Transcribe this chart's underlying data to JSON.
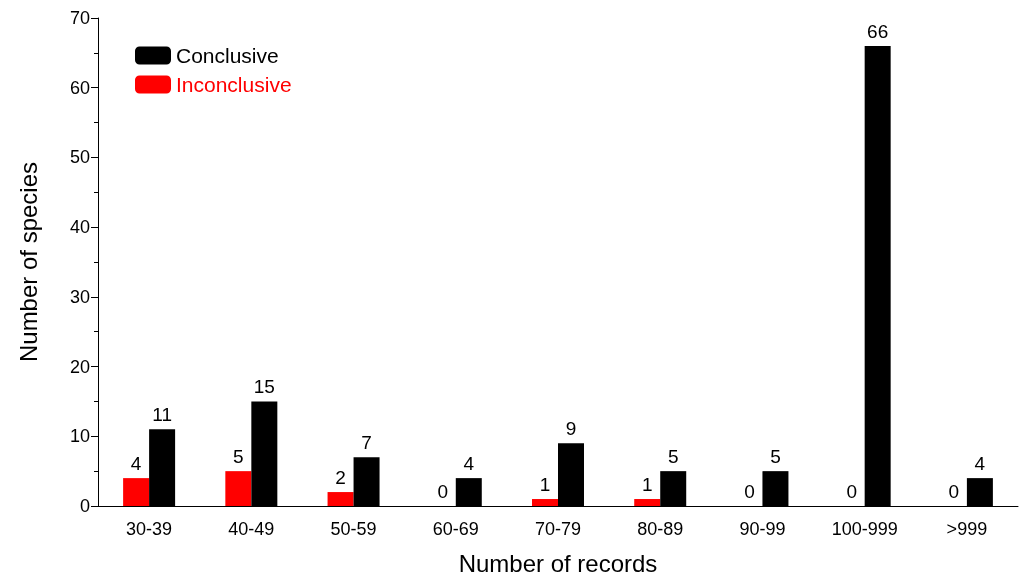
{
  "chart_data": {
    "type": "bar",
    "xlabel": "Number of records",
    "ylabel": "Number of species",
    "categories": [
      "30-39",
      "40-49",
      "50-59",
      "60-69",
      "70-79",
      "80-89",
      "90-99",
      "100-999",
      ">999"
    ],
    "series": [
      {
        "name": "Inconclusive",
        "color": "#ff0000",
        "values": [
          4,
          5,
          2,
          0,
          1,
          1,
          0,
          0,
          0
        ]
      },
      {
        "name": "Conclusive",
        "color": "#000000",
        "values": [
          11,
          15,
          7,
          4,
          9,
          5,
          5,
          66,
          4
        ]
      }
    ],
    "ylim": [
      0,
      70
    ],
    "yticks": [
      0,
      10,
      20,
      30,
      40,
      50,
      60,
      70
    ],
    "grid": false,
    "legend": "top left",
    "data_labels": true
  }
}
